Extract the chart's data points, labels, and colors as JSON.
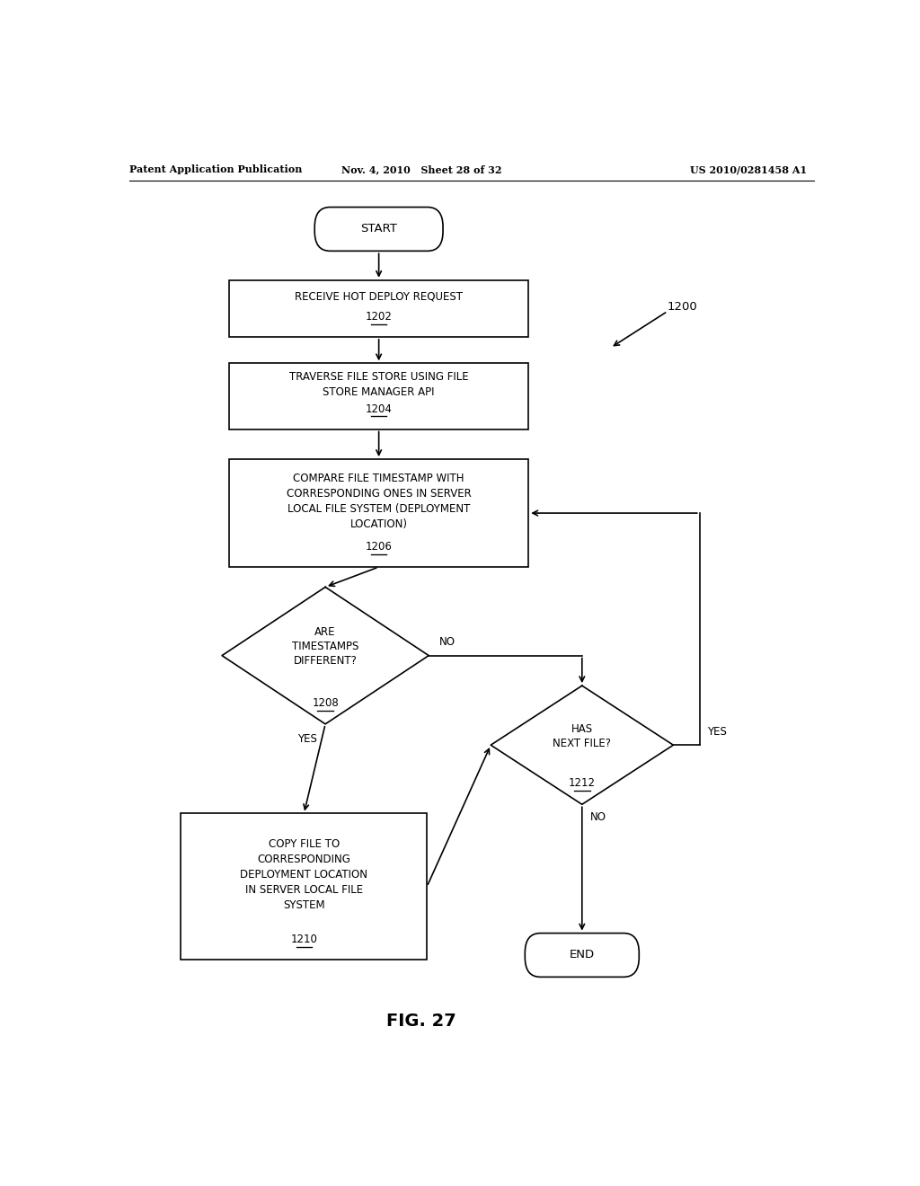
{
  "bg_color": "#ffffff",
  "header_left": "Patent Application Publication",
  "header_mid": "Nov. 4, 2010   Sheet 28 of 32",
  "header_right": "US 2010/0281458 A1",
  "fig_label": "FIG. 27",
  "ref_number": "1200",
  "font_size": 8.5,
  "line_color": "#000000",
  "text_color": "#000000"
}
